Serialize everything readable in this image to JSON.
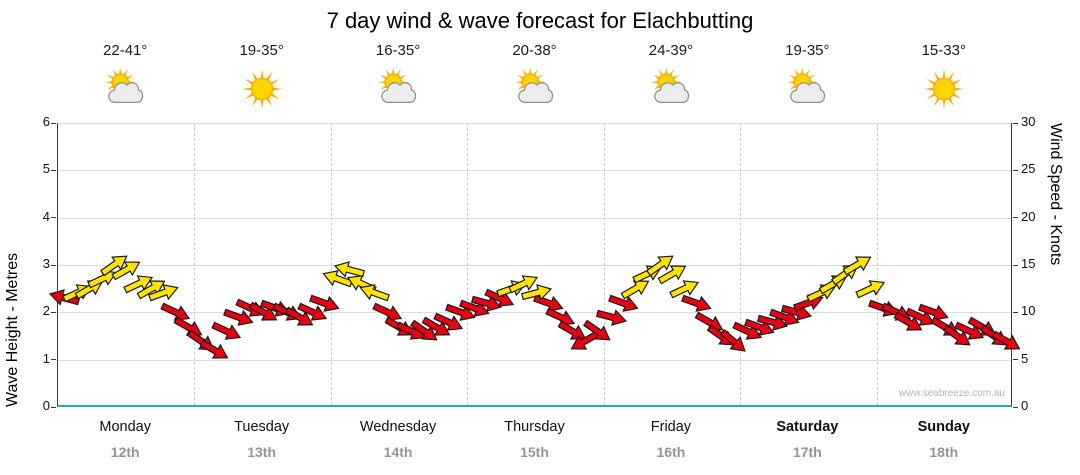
{
  "chart_data": {
    "type": "wind-arrows",
    "title": "7 day wind & wave forecast for Elachbutting",
    "y_left": {
      "label": "Wave Height - Metres",
      "min": 0,
      "max": 6,
      "ticks": [
        0,
        1,
        2,
        3,
        4,
        5,
        6
      ]
    },
    "y_right": {
      "label": "Wind Speed - Knots",
      "min": 0,
      "max": 30,
      "ticks": [
        0,
        5,
        10,
        15,
        20,
        25,
        30
      ]
    },
    "watermark": "www.seabreeze.com.au",
    "arrow_colors": {
      "red": "#e60012",
      "yellow": "#ffe400",
      "outline": "#1a1a1a",
      "yellow_min_knots": 12
    },
    "icon_colors": {
      "sun_core": "#ffd400",
      "sun_ray": "#ffaa00",
      "cloud": "#ececec",
      "cloud_outline": "#8f8f8f"
    },
    "days": [
      {
        "name": "Monday",
        "date": "12th",
        "temp": "22-41°",
        "icon": "sun-cloud",
        "bold": false,
        "wind": [
          [
            0.05,
            11.5,
            195
          ],
          [
            0.14,
            12,
            -25
          ],
          [
            0.23,
            12.5,
            -30
          ],
          [
            0.32,
            13.5,
            -25
          ],
          [
            0.41,
            15,
            -35
          ],
          [
            0.5,
            14.5,
            -30
          ],
          [
            0.59,
            13,
            -25
          ],
          [
            0.68,
            12.5,
            -30
          ],
          [
            0.77,
            12,
            -20
          ],
          [
            0.86,
            10,
            25
          ],
          [
            0.95,
            8.5,
            30
          ]
        ]
      },
      {
        "name": "Tuesday",
        "date": "13th",
        "temp": "19-35°",
        "icon": "sun",
        "bold": false,
        "wind": [
          [
            0.05,
            7,
            35
          ],
          [
            0.14,
            6,
            30
          ],
          [
            0.23,
            8,
            25
          ],
          [
            0.32,
            9.5,
            20
          ],
          [
            0.41,
            10.5,
            25
          ],
          [
            0.5,
            10,
            30
          ],
          [
            0.59,
            10.5,
            20
          ],
          [
            0.68,
            10,
            25
          ],
          [
            0.77,
            9.5,
            30
          ],
          [
            0.86,
            10,
            25
          ],
          [
            0.95,
            11,
            20
          ]
        ]
      },
      {
        "name": "Wednesday",
        "date": "14th",
        "temp": "16-35°",
        "icon": "sun-cloud",
        "bold": false,
        "wind": [
          [
            0.05,
            13.5,
            200
          ],
          [
            0.14,
            14.5,
            195
          ],
          [
            0.23,
            13,
            205
          ],
          [
            0.32,
            12,
            200
          ],
          [
            0.41,
            10,
            25
          ],
          [
            0.5,
            8.5,
            30
          ],
          [
            0.59,
            8,
            25
          ],
          [
            0.68,
            8,
            35
          ],
          [
            0.77,
            8.5,
            30
          ],
          [
            0.86,
            9,
            25
          ],
          [
            0.95,
            10,
            20
          ]
        ]
      },
      {
        "name": "Thursday",
        "date": "15th",
        "temp": "20-38°",
        "icon": "sun-cloud",
        "bold": false,
        "wind": [
          [
            0.05,
            10.5,
            20
          ],
          [
            0.14,
            11,
            15
          ],
          [
            0.23,
            11.5,
            25
          ],
          [
            0.32,
            12.5,
            -20
          ],
          [
            0.41,
            13,
            -25
          ],
          [
            0.5,
            12,
            -15
          ],
          [
            0.59,
            11,
            20
          ],
          [
            0.68,
            9.5,
            25
          ],
          [
            0.77,
            8,
            30
          ],
          [
            0.86,
            7,
            150
          ],
          [
            0.95,
            8,
            35
          ]
        ]
      },
      {
        "name": "Friday",
        "date": "16th",
        "temp": "24-39°",
        "icon": "sun-cloud",
        "bold": false,
        "wind": [
          [
            0.05,
            9.5,
            15
          ],
          [
            0.14,
            11,
            20
          ],
          [
            0.23,
            12.5,
            -30
          ],
          [
            0.32,
            14,
            -25
          ],
          [
            0.41,
            15,
            -35
          ],
          [
            0.5,
            14,
            -30
          ],
          [
            0.59,
            12.5,
            -25
          ],
          [
            0.68,
            11,
            20
          ],
          [
            0.77,
            9,
            30
          ],
          [
            0.86,
            7.5,
            35
          ],
          [
            0.95,
            7,
            40
          ]
        ]
      },
      {
        "name": "Saturday",
        "date": "17th",
        "temp": "19-35°",
        "icon": "sun-cloud",
        "bold": true,
        "wind": [
          [
            0.05,
            8,
            25
          ],
          [
            0.14,
            8.5,
            20
          ],
          [
            0.23,
            9,
            15
          ],
          [
            0.32,
            9.5,
            20
          ],
          [
            0.41,
            10,
            15
          ],
          [
            0.5,
            11,
            -20
          ],
          [
            0.59,
            12,
            -25
          ],
          [
            0.68,
            13,
            -30
          ],
          [
            0.77,
            14,
            -35
          ],
          [
            0.86,
            15,
            -30
          ],
          [
            0.95,
            12.5,
            -25
          ]
        ]
      },
      {
        "name": "Sunday",
        "date": "18th",
        "temp": "15-33°",
        "icon": "sun",
        "bold": true,
        "wind": [
          [
            0.05,
            10.5,
            20
          ],
          [
            0.14,
            10,
            25
          ],
          [
            0.23,
            9,
            30
          ],
          [
            0.32,
            9.5,
            25
          ],
          [
            0.41,
            10,
            20
          ],
          [
            0.5,
            8.5,
            30
          ],
          [
            0.59,
            7.5,
            35
          ],
          [
            0.68,
            8,
            25
          ],
          [
            0.77,
            8.5,
            30
          ],
          [
            0.86,
            7.5,
            35
          ],
          [
            0.95,
            7,
            30
          ]
        ]
      }
    ]
  }
}
